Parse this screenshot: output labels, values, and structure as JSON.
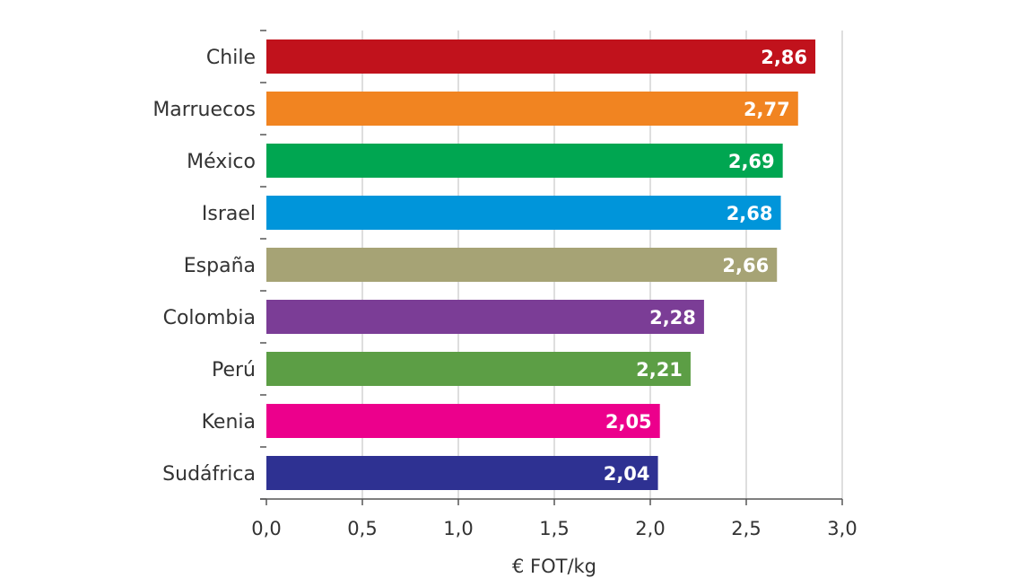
{
  "chart_data": {
    "type": "bar",
    "orientation": "horizontal",
    "categories": [
      "Chile",
      "Marruecos",
      "México",
      "Israel",
      "España",
      "Colombia",
      "Perú",
      "Kenia",
      "Sudáfrica"
    ],
    "values": [
      2.86,
      2.77,
      2.69,
      2.68,
      2.66,
      2.28,
      2.21,
      2.05,
      2.04
    ],
    "value_labels": [
      "2,86",
      "2,77",
      "2,69",
      "2,68",
      "2,66",
      "2,28",
      "2,21",
      "2,05",
      "2,04"
    ],
    "colors": [
      "#c1121c",
      "#f18421",
      "#00a651",
      "#0095da",
      "#a6a375",
      "#7b3d96",
      "#5c9e45",
      "#ec008c",
      "#2e3192"
    ],
    "xlabel": "€ FOT/kg",
    "ylabel": "",
    "xlim": [
      0,
      3.0
    ],
    "xticks": [
      0,
      0.5,
      1.0,
      1.5,
      2.0,
      2.5,
      3.0
    ],
    "xtick_labels": [
      "0,0",
      "0,5",
      "1,0",
      "1,5",
      "2,0",
      "2,5",
      "3,0"
    ],
    "grid": "vertical",
    "legend": "none"
  }
}
